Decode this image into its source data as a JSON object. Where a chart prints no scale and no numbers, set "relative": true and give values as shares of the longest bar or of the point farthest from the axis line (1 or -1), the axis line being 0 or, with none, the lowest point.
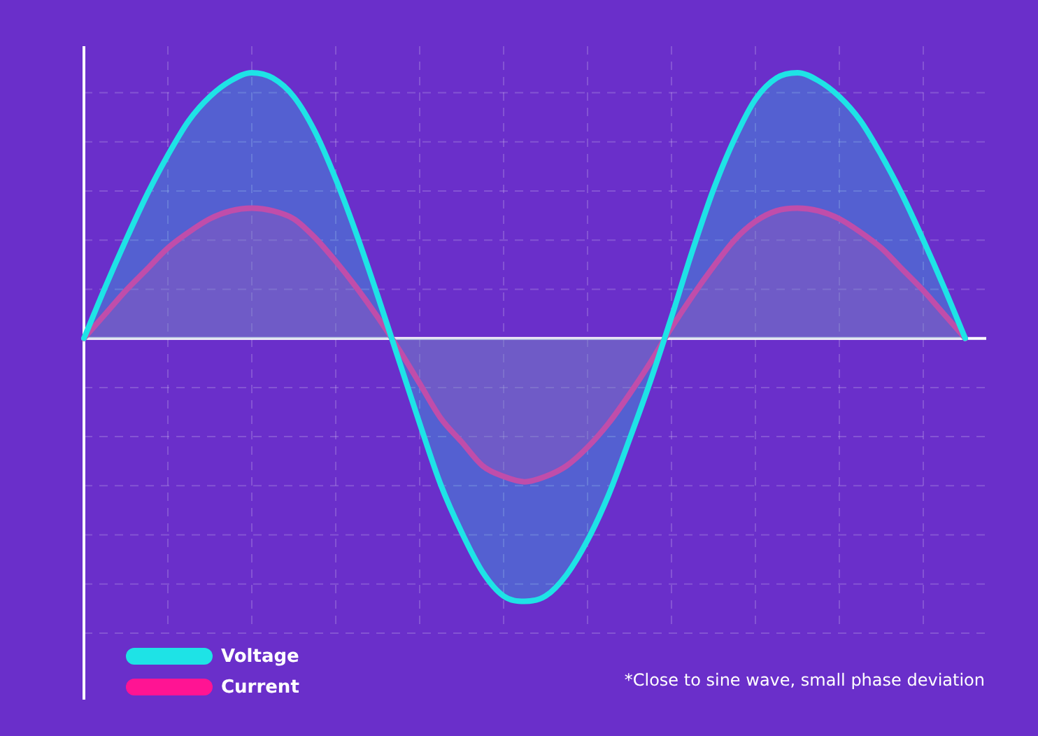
{
  "chart_data": {
    "type": "area",
    "relative": true,
    "grid": true,
    "legend": "bottom left",
    "categories": [
      null,
      null,
      null,
      null,
      null,
      null,
      null,
      null,
      null,
      null,
      null,
      null,
      null,
      null,
      null,
      null,
      null,
      null,
      null,
      null,
      null,
      null,
      null,
      null,
      null,
      null,
      null,
      null,
      null,
      null,
      null,
      null,
      null,
      null,
      null,
      null,
      null,
      null,
      null,
      null,
      null,
      null,
      null
    ],
    "series": [
      {
        "name": "Voltage",
        "color": "#1ee3e6",
        "values": [
          0,
          0.19,
          0.37,
          0.54,
          0.69,
          0.82,
          0.91,
          0.97,
          1.0,
          0.98,
          0.91,
          0.78,
          0.6,
          0.39,
          0.16,
          -0.08,
          -0.32,
          -0.55,
          -0.73,
          -0.88,
          -0.97,
          -0.99,
          -0.97,
          -0.89,
          -0.76,
          -0.59,
          -0.38,
          -0.16,
          0.08,
          0.33,
          0.56,
          0.75,
          0.9,
          0.98,
          1.0,
          0.97,
          0.91,
          0.82,
          0.69,
          0.54,
          0.37,
          0.19,
          0
        ]
      },
      {
        "name": "Current",
        "color": "#ff1493",
        "values": [
          0,
          0.09,
          0.18,
          0.26,
          0.34,
          0.4,
          0.45,
          0.48,
          0.49,
          0.48,
          0.45,
          0.38,
          0.29,
          0.19,
          0.08,
          -0.04,
          -0.17,
          -0.3,
          -0.39,
          -0.48,
          -0.52,
          -0.54,
          -0.52,
          -0.48,
          -0.41,
          -0.32,
          -0.21,
          -0.09,
          0.04,
          0.16,
          0.27,
          0.37,
          0.44,
          0.48,
          0.49,
          0.48,
          0.45,
          0.4,
          0.34,
          0.26,
          0.18,
          0.09,
          0
        ]
      }
    ],
    "annotations": [
      "*Close to sine wave, small phase deviation"
    ]
  }
}
